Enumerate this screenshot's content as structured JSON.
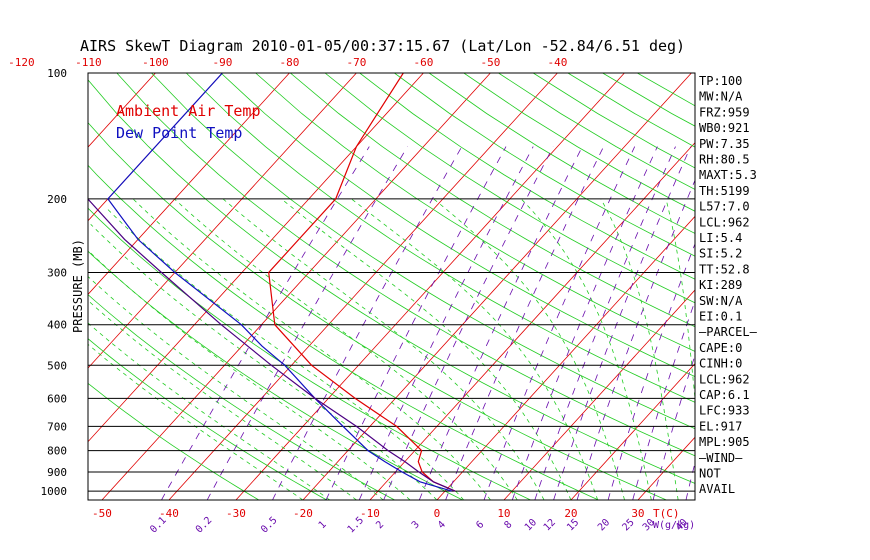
{
  "title": "AIRS SkewT Diagram 2010-01-05/00:37:15.67 (Lat/Lon -52.84/6.51 deg)",
  "colors": {
    "ambient": "#e00000",
    "dewpoint": "#1010c0",
    "isotherm": "#e00000",
    "dry_adiabat": "#22cc22",
    "moist_adiabat": "#22cc22",
    "mixing_ratio": "#6a0dad",
    "parcel": "#4b0082",
    "isobar": "#000000"
  },
  "chart_data": {
    "type": "line",
    "subtype": "skew-t log-p",
    "title": "AIRS SkewT Diagram 2010-01-05/00:37:15.67 (Lat/Lon -52.84/6.51 deg)",
    "ylabel": "PRESSURE (MB)",
    "xlabel_bottom": "T(C)",
    "xlabel_mixing": "W(g/kg)",
    "y_scale": "log",
    "ylim": [
      1050,
      100
    ],
    "pressure_ticks": [
      100,
      200,
      300,
      400,
      500,
      600,
      700,
      800,
      900,
      1000
    ],
    "isobars": [
      200,
      300,
      400,
      500,
      600,
      700,
      800,
      900,
      1000
    ],
    "top_temp_ticks": [
      -120,
      -110,
      -100,
      -90,
      -80,
      -70,
      -60,
      -50,
      -40
    ],
    "bottom_temp_ticks": [
      -50,
      -40,
      -30,
      -20,
      -10,
      0,
      10,
      20,
      30
    ],
    "mixing_ratio_ticks": [
      "0.1",
      "0.2",
      "0.5",
      "1",
      "1.5",
      "2",
      "3",
      "4",
      "6",
      "8",
      "10",
      "12",
      "15",
      "20",
      "25",
      "30",
      "40"
    ],
    "legend": [
      "Ambient Air Temp",
      "Dew Point Temp"
    ],
    "series": [
      {
        "name": "Ambient Air Temp",
        "color": "#e00000",
        "pressure": [
          1000,
          950,
          900,
          850,
          800,
          700,
          600,
          500,
          400,
          300,
          250,
          200,
          150,
          100
        ],
        "temp_c": [
          1.5,
          -3,
          -6,
          -8,
          -9,
          -16,
          -26,
          -37,
          -48,
          -56,
          -56,
          -56,
          -60,
          -63
        ]
      },
      {
        "name": "Dew Point Temp",
        "color": "#1010c0",
        "pressure": [
          1000,
          950,
          900,
          850,
          800,
          700,
          600,
          500,
          450,
          400,
          300,
          250,
          200,
          150,
          100
        ],
        "temp_c": [
          1,
          -5,
          -9,
          -13,
          -17,
          -24,
          -32,
          -41,
          -47,
          -53,
          -70,
          -80,
          -90,
          -90,
          -90
        ]
      },
      {
        "name": "Parcel",
        "color": "#4b0082",
        "pressure": [
          1000,
          950,
          900,
          850,
          800,
          700,
          600,
          500,
          400,
          300,
          250,
          200,
          150,
          100
        ],
        "temp_c": [
          1.5,
          -3,
          -6.5,
          -10,
          -14,
          -22,
          -32,
          -43,
          -56,
          -72,
          -82,
          -93,
          -107,
          -125
        ]
      }
    ]
  },
  "stats": [
    "TP:100",
    "MW:N/A",
    "FRZ:959",
    "WB0:921",
    "PW:7.35",
    "RH:80.5",
    "MAXT:5.3",
    "TH:5199",
    "L57:7.0",
    "LCL:962",
    "LI:5.4",
    "SI:5.2",
    "TT:52.8",
    "KI:289",
    "SW:N/A",
    "EI:0.1",
    "—PARCEL—",
    "CAPE:0",
    "CINH:0",
    "LCL:962",
    "CAP:6.1",
    "LFC:933",
    "EL:917",
    "MPL:905",
    "—WIND—",
    "NOT",
    "AVAIL"
  ]
}
